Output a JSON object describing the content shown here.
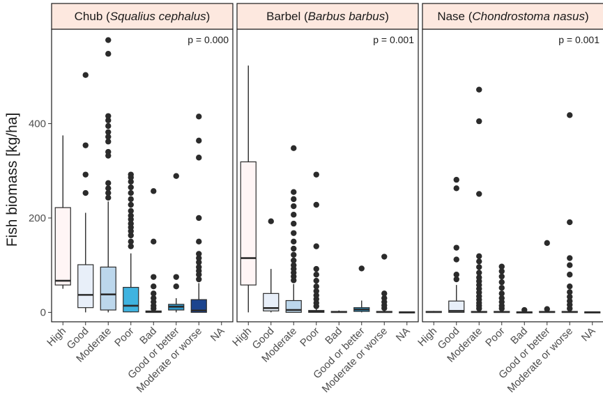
{
  "chart_data": {
    "type": "boxplot",
    "ylabel": "Fish biomass [kg/ha]",
    "xlabel": "",
    "ylim": [
      -20,
      600
    ],
    "yticks": [
      0,
      200,
      400
    ],
    "categories": [
      "High",
      "Good",
      "Moderate",
      "Poor",
      "Bad",
      "Good or better",
      "Moderate or worse",
      "NA"
    ],
    "colors": {
      "High": "#fff5f5",
      "Good": "#e8eff9",
      "Moderate": "#bcd7ec",
      "Poor": "#3fb3e0",
      "Bad": "#1ea8d8",
      "Good or better": "#2f97c9",
      "Moderate or worse": "#1c448e",
      "NA": "#7a7a7a",
      "strip_fill": "#fde8df",
      "point": "#2b2b2b"
    },
    "panels": [
      {
        "title_plain": "Chub (",
        "title_italic": "Squalius cephalus",
        "title_close": ")",
        "pvalue": "p = 0.000",
        "boxes": [
          {
            "category": "High",
            "q1": 58,
            "median": 67,
            "q3": 222,
            "lower": 50,
            "upper": 375,
            "outliers": []
          },
          {
            "category": "Good",
            "q1": 10,
            "median": 37,
            "q3": 101,
            "lower": 0,
            "upper": 211,
            "outliers": [
              253,
              292,
              354,
              503
            ]
          },
          {
            "category": "Moderate",
            "q1": 5,
            "median": 38,
            "q3": 96,
            "lower": 0,
            "upper": 235,
            "outliers": [
              243,
              253,
              263,
              274,
              332,
              340,
              362,
              372,
              382,
              395,
              407,
              416,
              548,
              577
            ]
          },
          {
            "category": "Poor",
            "q1": 1,
            "median": 14,
            "q3": 53,
            "lower": 0,
            "upper": 125,
            "outliers": [
              140,
              150,
              163,
              172,
              180,
              188,
              197,
              205,
              215,
              228,
              240,
              253,
              265,
              277,
              286,
              292
            ]
          },
          {
            "category": "Bad",
            "q1": 0,
            "median": 1,
            "q3": 3,
            "lower": 0,
            "upper": 5,
            "outliers": [
              8,
              14,
              22,
              30,
              40,
              55,
              75,
              150,
              257
            ]
          },
          {
            "category": "Good or better",
            "q1": 5,
            "median": 12,
            "q3": 17,
            "lower": 0,
            "upper": 30,
            "outliers": [
              55,
              75,
              289
            ]
          },
          {
            "category": "Moderate or worse",
            "q1": 0,
            "median": 4,
            "q3": 27,
            "lower": 0,
            "upper": 62,
            "outliers": [
              70,
              80,
              88,
              96,
              106,
              115,
              124,
              150,
              200,
              328,
              364,
              415
            ]
          },
          {
            "category": "NA",
            "empty": true
          }
        ]
      },
      {
        "title_plain": "Barbel (",
        "title_italic": "Barbus barbus",
        "title_close": ")",
        "pvalue": "p = 0.001",
        "boxes": [
          {
            "category": "High",
            "q1": 58,
            "median": 115,
            "q3": 319,
            "lower": 0,
            "upper": 523,
            "outliers": []
          },
          {
            "category": "Good",
            "q1": 3,
            "median": 9,
            "q3": 40,
            "lower": 0,
            "upper": 92,
            "outliers": [
              193
            ]
          },
          {
            "category": "Moderate",
            "q1": 0,
            "median": 5,
            "q3": 25,
            "lower": 0,
            "upper": 60,
            "outliers": [
              68,
              76,
              84,
              92,
              100,
              110,
              122,
              135,
              150,
              168,
              188,
              207,
              225,
              240,
              255,
              348
            ]
          },
          {
            "category": "Poor",
            "q1": 0,
            "median": 2,
            "q3": 4,
            "lower": 0,
            "upper": 9,
            "outliers": [
              13,
              20,
              28,
              36,
              45,
              55,
              67,
              80,
              92,
              140,
              228,
              292
            ]
          },
          {
            "category": "Bad",
            "q1": 0,
            "median": 1,
            "q3": 2,
            "lower": 0,
            "upper": 4,
            "outliers": []
          },
          {
            "category": "Good or better",
            "q1": 2,
            "median": 6,
            "q3": 10,
            "lower": 0,
            "upper": 25,
            "outliers": [
              93
            ]
          },
          {
            "category": "Moderate or worse",
            "q1": 0,
            "median": 1,
            "q3": 2,
            "lower": 0,
            "upper": 5,
            "outliers": [
              9,
              15,
              22,
              30,
              40,
              118
            ]
          },
          {
            "category": "NA",
            "q1": 0,
            "median": 0,
            "q3": 1,
            "lower": 0,
            "upper": 1,
            "outliers": []
          }
        ]
      },
      {
        "title_plain": "Nase (",
        "title_italic": "Chondrostoma nasus",
        "title_close": ")",
        "pvalue": "p = 0.001",
        "boxes": [
          {
            "category": "High",
            "q1": 0,
            "median": 1,
            "q3": 2,
            "lower": 0,
            "upper": 3,
            "outliers": []
          },
          {
            "category": "Good",
            "q1": 0,
            "median": 3,
            "q3": 24,
            "lower": 0,
            "upper": 58,
            "outliers": [
              70,
              80,
              112,
              137,
              263,
              281
            ]
          },
          {
            "category": "Moderate",
            "q1": 0,
            "median": 1,
            "q3": 2,
            "lower": 0,
            "upper": 4,
            "outliers": [
              8,
              14,
              20,
              27,
              34,
              42,
              50,
              58,
              66,
              74,
              84,
              96,
              108,
              119,
              251,
              405,
              472
            ]
          },
          {
            "category": "Poor",
            "q1": 0,
            "median": 1,
            "q3": 2,
            "lower": 0,
            "upper": 4,
            "outliers": [
              8,
              14,
              22,
              30,
              40,
              52,
              64,
              76,
              87,
              97
            ]
          },
          {
            "category": "Bad",
            "q1": 0,
            "median": 0,
            "q3": 1,
            "lower": 0,
            "upper": 2,
            "outliers": [
              5
            ]
          },
          {
            "category": "Good or better",
            "q1": 0,
            "median": 1,
            "q3": 2,
            "lower": 0,
            "upper": 3,
            "outliers": [
              7,
              147
            ]
          },
          {
            "category": "Moderate or worse",
            "q1": 0,
            "median": 1,
            "q3": 2,
            "lower": 0,
            "upper": 4,
            "outliers": [
              8,
              16,
              24,
              33,
              43,
              55,
              80,
              100,
              115,
              191,
              418
            ]
          },
          {
            "category": "NA",
            "q1": 0,
            "median": 0,
            "q3": 1,
            "lower": 0,
            "upper": 1,
            "outliers": []
          }
        ]
      }
    ]
  }
}
